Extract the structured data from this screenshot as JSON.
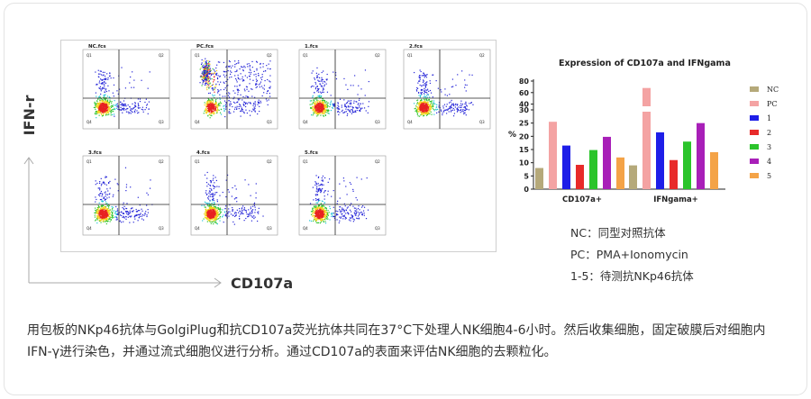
{
  "axis_labels": {
    "y": "IFN-r",
    "x": "CD107a"
  },
  "flow_plots": [
    {
      "title": "NC.fcs",
      "q1": "Q1",
      "q2": "Q2",
      "q3": "Q3",
      "q4": "Q4"
    },
    {
      "title": "PC.fcs",
      "q1": "Q1",
      "q2": "Q2",
      "q3": "Q3",
      "q4": "Q4"
    },
    {
      "title": "1.fcs",
      "q1": "Q1",
      "q2": "Q2",
      "q3": "Q3",
      "q4": "Q4"
    },
    {
      "title": "2.fcs",
      "q1": "Q1",
      "q2": "Q2",
      "q3": "Q3",
      "q4": "Q4"
    },
    {
      "title": "3.fcs",
      "q1": "Q1",
      "q2": "Q2",
      "q3": "Q3",
      "q4": "Q4"
    },
    {
      "title": "4.fcs",
      "q1": "Q1",
      "q2": "Q2",
      "q3": "Q3",
      "q4": "Q4"
    },
    {
      "title": "5.fcs",
      "q1": "Q1",
      "q2": "Q2",
      "q3": "Q3",
      "q4": "Q4"
    }
  ],
  "chart_data": {
    "type": "bar",
    "title": "Expression of CD107a and IFNgama",
    "ylabel": "%",
    "categories": [
      "CD107a+",
      "IFNgama+"
    ],
    "yticks": [
      "0",
      "5",
      "10",
      "15",
      "20",
      "25",
      "30",
      "40",
      "60",
      "80"
    ],
    "ybreak": true,
    "series": [
      {
        "name": "NC",
        "color": "#b5a97a",
        "values": [
          8,
          9
        ]
      },
      {
        "name": "PC",
        "color": "#f4a3a3",
        "values": [
          25.5,
          68
        ]
      },
      {
        "name": "1",
        "color": "#1e1ee8",
        "values": [
          16.5,
          21.5
        ]
      },
      {
        "name": "2",
        "color": "#e82a2a",
        "values": [
          9.2,
          11
        ]
      },
      {
        "name": "3",
        "color": "#2bc42b",
        "values": [
          14.8,
          18
        ]
      },
      {
        "name": "4",
        "color": "#a81fb8",
        "values": [
          19.8,
          25
        ]
      },
      {
        "name": "5",
        "color": "#f4a347",
        "values": [
          12,
          14
        ]
      }
    ]
  },
  "legend_notes": {
    "nc": "NC：同型对照抗体",
    "pc": "PC：PMA+Ionomycin",
    "samples": "1-5：待测抗NKp46抗体"
  },
  "caption": "用包板的NKp46抗体与GolgiPlug和抗CD107a荧光抗体共同在37°C下处理人NK细胞4-6小时。然后收集细胞，固定破膜后对细胞内IFN-γ进行染色，并通过流式细胞仪进行分析。通过CD107a的表面来评估NK细胞的去颗粒化。"
}
